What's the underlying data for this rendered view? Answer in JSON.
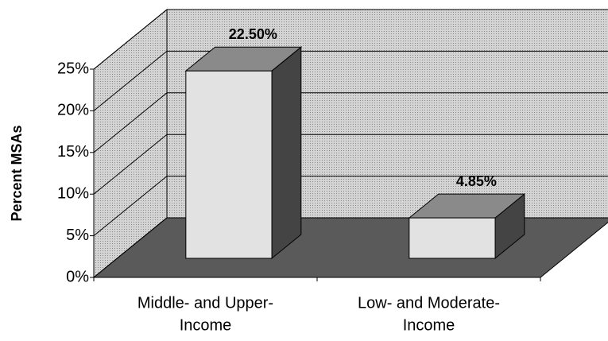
{
  "chart_data": {
    "type": "bar3d",
    "y_label": "Percent MSAs",
    "categories": [
      [
        "Middle- and Upper-",
        "Income"
      ],
      [
        "Low- and Moderate-",
        "Income"
      ]
    ],
    "values": [
      22.5,
      4.85
    ],
    "value_labels": [
      "22.50%",
      "4.85%"
    ],
    "colors": {
      "wall": "#c9c9c9",
      "floor": "#5a5a5a",
      "front": "#e2e2e2",
      "top": "#8a8a8a",
      "side": "#444444"
    },
    "ylim": [
      0,
      25
    ],
    "yticks": [
      {
        "value": 0,
        "label": "0%"
      },
      {
        "value": 5,
        "label": "5%"
      },
      {
        "value": 10,
        "label": "10%"
      },
      {
        "value": 15,
        "label": "15%"
      },
      {
        "value": 20,
        "label": "20%"
      },
      {
        "value": 25,
        "label": "25%"
      }
    ],
    "grid": true
  }
}
